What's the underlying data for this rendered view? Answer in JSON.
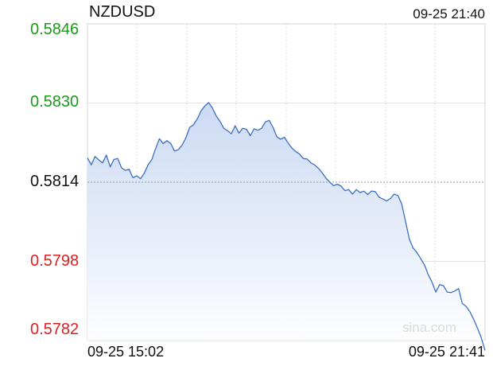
{
  "header": {
    "symbol": "NZDUSD",
    "timestamp": "09-25 21:40"
  },
  "watermark": "sina.com",
  "colors": {
    "line": "#3d6fc4",
    "fill_top": "#c9d8f2",
    "fill_bottom": "#ffffff",
    "grid": "#e3e3e3",
    "reference": "#9a9a9a",
    "up": "#1a9a1a",
    "flat": "#111111",
    "down": "#dd1f1f"
  },
  "chart_data": {
    "type": "area",
    "title": "NZDUSD",
    "reference_price": 0.5814,
    "ylim": [
      0.5782,
      0.5846
    ],
    "y_ticks": [
      {
        "label": "0.5846",
        "value": 0.5846,
        "color": "up"
      },
      {
        "label": "0.5830",
        "value": 0.583,
        "color": "up"
      },
      {
        "label": "0.5814",
        "value": 0.5814,
        "color": "flat"
      },
      {
        "label": "0.5798",
        "value": 0.5798,
        "color": "down"
      },
      {
        "label": "0.5782",
        "value": 0.5782,
        "color": "down"
      }
    ],
    "x_labels": {
      "start": "09-25 15:02",
      "end": "09-25 21:41"
    },
    "grid": true,
    "series": [
      {
        "values": [
          0.58189,
          0.58175,
          0.58192,
          0.58185,
          0.58179,
          0.58195,
          0.58171,
          0.58186,
          0.58188,
          0.58169,
          0.58164,
          0.58166,
          0.58149,
          0.58153,
          0.58147,
          0.58158,
          0.58175,
          0.58186,
          0.58208,
          0.58228,
          0.58218,
          0.58224,
          0.58218,
          0.58203,
          0.58206,
          0.58215,
          0.5823,
          0.58251,
          0.58256,
          0.58268,
          0.58284,
          0.58294,
          0.58301,
          0.5829,
          0.58274,
          0.58263,
          0.58249,
          0.58244,
          0.58238,
          0.58254,
          0.58239,
          0.58249,
          0.58247,
          0.58234,
          0.58248,
          0.58245,
          0.58249,
          0.58262,
          0.58265,
          0.58251,
          0.58232,
          0.58227,
          0.58231,
          0.58219,
          0.58209,
          0.58202,
          0.58197,
          0.58188,
          0.58187,
          0.58179,
          0.58175,
          0.58168,
          0.58159,
          0.58148,
          0.5814,
          0.58133,
          0.58136,
          0.58132,
          0.58123,
          0.58125,
          0.58116,
          0.58125,
          0.58119,
          0.58122,
          0.58115,
          0.58122,
          0.58121,
          0.5811,
          0.58106,
          0.58102,
          0.58107,
          0.58116,
          0.58113,
          0.58096,
          0.58061,
          0.58025,
          0.58007,
          0.57998,
          0.57986,
          0.57973,
          0.57953,
          0.57938,
          0.57918,
          0.57933,
          0.57931,
          0.57918,
          0.57917,
          0.5792,
          0.57925,
          0.57895,
          0.57889,
          0.57878,
          0.57863,
          0.57845,
          0.57826,
          0.578
        ]
      }
    ]
  }
}
